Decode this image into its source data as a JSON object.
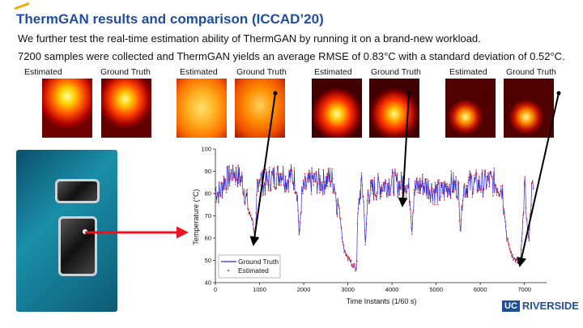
{
  "slide": {
    "title": "ThermGAN results and comparison (ICCAD’20)",
    "line1": "We further test the real-time estimation ability of ThermGAN by running it on a brand-new workload.",
    "line2": "7200 samples were collected and ThermGAN yields an average RMSE of 0.83°C with a standard deviation of 0.52°C.",
    "captions": [
      "Estimated",
      "Ground Truth",
      "Estimated",
      "Ground Truth",
      "Estimated",
      "Ground Truth",
      "Estimated",
      "Ground Truth"
    ],
    "logo": {
      "uc": "UC",
      "name": "RIVERSIDE"
    }
  },
  "colors": {
    "title": "#1f4e9b",
    "ground_truth": "#2a2acf",
    "estimated": "#e8141e",
    "arrow_red": "#e8141e"
  },
  "chart_data": {
    "type": "line",
    "xlabel": "Time Instants (1/60 s)",
    "ylabel": "Temperature (°C)",
    "xlim": [
      0,
      7500
    ],
    "ylim": [
      40,
      100
    ],
    "xticks": [
      0,
      1000,
      2000,
      3000,
      4000,
      5000,
      6000,
      7000
    ],
    "yticks": [
      40,
      50,
      60,
      70,
      80,
      90,
      100
    ],
    "legend_placement": "bottom-left",
    "series": [
      {
        "name": "Ground Truth",
        "style": "line",
        "x": [
          0,
          100,
          200,
          300,
          400,
          500,
          600,
          700,
          750,
          800,
          850,
          900,
          950,
          1000,
          1100,
          1200,
          1300,
          1400,
          1500,
          1600,
          1700,
          1800,
          1850,
          1900,
          1950,
          2000,
          2200,
          2400,
          2600,
          2700,
          2750,
          2800,
          2900,
          3000,
          3100,
          3200,
          3220,
          3300,
          3350,
          3400,
          3450,
          3600,
          3800,
          4000,
          4200,
          4300,
          4400,
          4450,
          4500,
          4700,
          4900,
          5100,
          5300,
          5500,
          5550,
          5600,
          5800,
          6000,
          6200,
          6400,
          6500,
          6600,
          6700,
          6800,
          6900,
          6950,
          7000,
          7050,
          7100,
          7150,
          7200
        ],
        "y": [
          82,
          80,
          86,
          87,
          90,
          88,
          86,
          78,
          72,
          70,
          68,
          57,
          85,
          88,
          84,
          86,
          87,
          88,
          90,
          86,
          88,
          86,
          82,
          60,
          78,
          82,
          86,
          85,
          87,
          84,
          76,
          74,
          56,
          51,
          48,
          46,
          70,
          84,
          80,
          56,
          80,
          82,
          84,
          85,
          84,
          86,
          80,
          62,
          82,
          84,
          82,
          80,
          84,
          83,
          62,
          82,
          85,
          84,
          86,
          84,
          82,
          60,
          53,
          50,
          48,
          62,
          84,
          68,
          58,
          80,
          82
        ]
      },
      {
        "name": "Estimated",
        "style": "points"
      }
    ]
  }
}
